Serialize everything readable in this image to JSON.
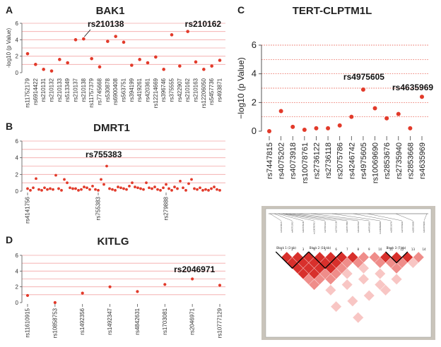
{
  "chart_data": [
    {
      "panel": "A",
      "type": "scatter",
      "title": "BAK1",
      "ylabel": "-log10 (p Value)",
      "ylim": [
        0,
        6
      ],
      "yticks": [
        0,
        2,
        4,
        6
      ],
      "grid": true,
      "categories": [
        "rs11752179",
        "rs6914422",
        "rs210131",
        "rs210132",
        "rs210133",
        "rs513349",
        "rs210137",
        "rs210138",
        "rs11757379",
        "rs7745668",
        "rs530878",
        "rs6900408",
        "rs563751",
        "rs394199",
        "rs419261",
        "rs420361",
        "rs12214669",
        "rs396746",
        "rs375555",
        "rs422907",
        "rs210162",
        "rs210163",
        "rs12206050",
        "rs5457736",
        "rs493871"
      ],
      "values": [
        2.3,
        1.0,
        0.4,
        0.2,
        1.6,
        1.2,
        4.0,
        4.1,
        1.7,
        0.7,
        3.8,
        4.4,
        3.7,
        0.9,
        1.6,
        1.2,
        1.9,
        0.4,
        4.6,
        0.8,
        5.0,
        1.3,
        0.4,
        0.8,
        1.5
      ],
      "annotations": [
        "rs210138",
        "rs210162"
      ]
    },
    {
      "panel": "B",
      "type": "scatter",
      "title": "DMRT1",
      "ylim": [
        0,
        6
      ],
      "yticks": [
        0,
        2,
        4,
        6
      ],
      "grid": true,
      "categories": [
        "rs4141756",
        "rs755383",
        "rs279888"
      ],
      "category_positions": [
        0,
        25,
        49
      ],
      "values": [
        0.3,
        0.1,
        0.4,
        1.5,
        0.2,
        0.1,
        0.4,
        0.2,
        0.3,
        0.2,
        1.9,
        0.3,
        0.1,
        1.4,
        1.0,
        0.4,
        0.3,
        0.3,
        0.1,
        0.2,
        0.5,
        0.4,
        0.2,
        0.6,
        0.2,
        0.1,
        1.4,
        0.8,
        3.0,
        0.3,
        0.2,
        0.1,
        0.5,
        0.4,
        0.3,
        0.2,
        0.6,
        1.0,
        0.5,
        0.4,
        0.3,
        0.2,
        1.0,
        0.4,
        0.3,
        0.5,
        0.2,
        0.1,
        0.4,
        0.8,
        0.3,
        0.1,
        0.5,
        0.3,
        1.2,
        0.4,
        0.1,
        0.9,
        1.4,
        0.3,
        0.2,
        0.4,
        0.1,
        0.2,
        0.1,
        0.3,
        0.5,
        0.2,
        0.1
      ],
      "annotations": [
        "rs755383"
      ]
    },
    {
      "panel": "C",
      "type": "scatter",
      "title": "TERT-CLPTM1L",
      "ylabel": "−log10 (p Value)",
      "ylim": [
        0,
        6
      ],
      "yticks": [
        0,
        2,
        4,
        6
      ],
      "grid": true,
      "categories": [
        "rs7447815",
        "rs4075202",
        "rs4073918",
        "rs10078761",
        "rs2736122",
        "rs2736118",
        "rs2075786",
        "rs4246742",
        "rs4975605",
        "rs10069690",
        "rs2853676",
        "rs2735940",
        "rs2853668",
        "rs4635969"
      ],
      "values": [
        0.0,
        1.4,
        0.3,
        0.1,
        0.2,
        0.2,
        0.4,
        1.0,
        2.9,
        1.6,
        0.9,
        1.2,
        0.2,
        2.4
      ],
      "annotations": [
        "rs4975605",
        "rs4635969"
      ]
    },
    {
      "panel": "D",
      "type": "scatter",
      "title": "KITLG",
      "ylim": [
        0,
        6
      ],
      "yticks": [
        0,
        2,
        4,
        6
      ],
      "grid": true,
      "categories": [
        "rs11610915",
        "rs10858753",
        "rs1492356",
        "rs1492347",
        "rs4842631",
        "rs1703081",
        "rs2046971",
        "rs10777129"
      ],
      "values": [
        0.9,
        0.0,
        1.2,
        2.0,
        1.4,
        2.3,
        3.0,
        2.2
      ],
      "annotations": [
        "rs2046971"
      ]
    }
  ],
  "ld_plot": {
    "snps": [
      "rs7447815",
      "rs4075202",
      "rs4073918",
      "rs10078761",
      "rs2736122",
      "rs2736118",
      "rs2075786",
      "rs4246742",
      "rs4975605",
      "rs10069690",
      "rs2853676",
      "rs2735940",
      "rs2853668",
      "rs4635969"
    ],
    "numbers": [
      "1",
      "2",
      "3",
      "4",
      "5",
      "6",
      "7",
      "8",
      "9",
      "10",
      "11",
      "12",
      "13",
      "14"
    ],
    "blocks": [
      "Block 1 (3 kb)",
      "Block 2 (10 kb)",
      "Block 3 (7 kb)"
    ],
    "colors": {
      "strong": "#d8302c",
      "mid": "#ef8d8a",
      "light": "#f8c6c4",
      "none": "#ffffff",
      "bg": "#c9c4bb"
    }
  },
  "style": {
    "point_color": "#e23a2a",
    "grid_color": "#f3a6a6",
    "dotted_grid_color": "#e33b2b"
  }
}
